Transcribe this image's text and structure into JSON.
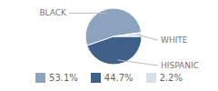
{
  "chart_data": {
    "type": "pie",
    "categories": [
      "BLACK",
      "HISPANIC",
      "WHITE"
    ],
    "values": [
      53.1,
      44.7,
      2.2
    ],
    "value_labels": [
      "53.1%",
      "44.7%",
      "2.2%"
    ],
    "colors": [
      "#8ba3be",
      "#3f6088",
      "#d6e0ea"
    ],
    "legend": "bottom"
  }
}
